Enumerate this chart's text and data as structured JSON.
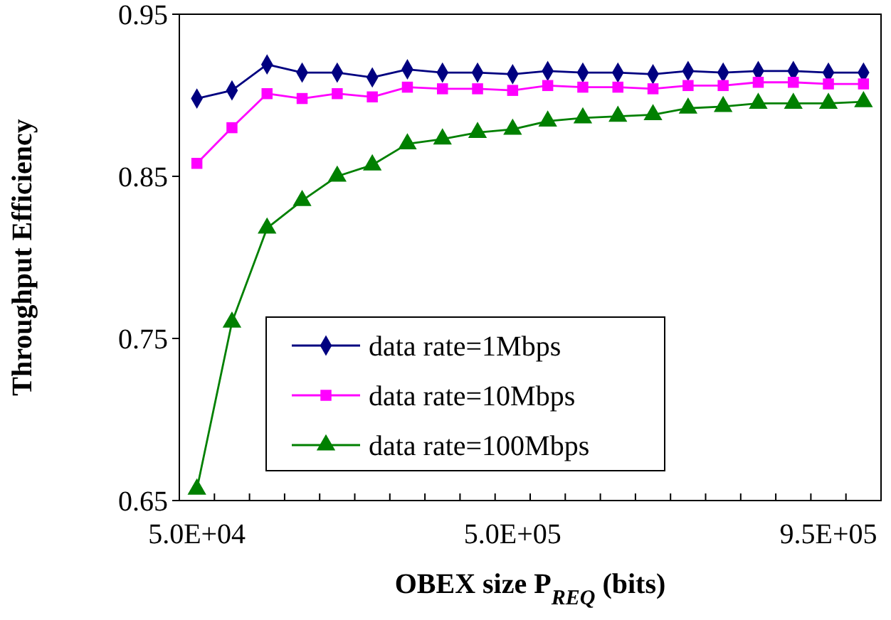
{
  "chart_data": {
    "type": "line",
    "xlabel": "OBEX size P$_{REQ}$ (bits)",
    "ylabel": "Throughput Efficiency",
    "categories": [
      "5.0E+04",
      null,
      null,
      null,
      null,
      null,
      null,
      null,
      null,
      "5.0E+05",
      null,
      null,
      null,
      null,
      null,
      null,
      null,
      null,
      "9.5E+05",
      null
    ],
    "ylim": [
      0.65,
      0.95
    ],
    "yticks": [
      0.65,
      0.75,
      0.85,
      0.95
    ],
    "grid": false,
    "legend": "bottom left",
    "line_style": "solid",
    "series": [
      {
        "name": "data rate=1Mbps",
        "color": "#000080",
        "marker": "diamond",
        "values": [
          0.898,
          0.903,
          0.919,
          0.914,
          0.914,
          0.911,
          0.916,
          0.914,
          0.914,
          0.913,
          0.915,
          0.914,
          0.914,
          0.913,
          0.915,
          0.914,
          0.915,
          0.915,
          0.914,
          0.914
        ]
      },
      {
        "name": "data rate=10Mbps",
        "color": "#ff00ff",
        "marker": "square",
        "values": [
          0.858,
          0.88,
          0.901,
          0.898,
          0.901,
          0.899,
          0.905,
          0.904,
          0.904,
          0.903,
          0.906,
          0.905,
          0.905,
          0.904,
          0.906,
          0.906,
          0.908,
          0.908,
          0.907,
          0.907
        ]
      },
      {
        "name": "data rate=100Mbps",
        "color": "#008000",
        "marker": "triangle",
        "values": [
          0.657,
          0.76,
          0.818,
          0.835,
          0.85,
          0.857,
          0.87,
          0.873,
          0.877,
          0.879,
          0.884,
          0.886,
          0.887,
          0.888,
          0.892,
          0.893,
          0.895,
          0.895,
          0.895,
          0.896
        ]
      }
    ]
  }
}
